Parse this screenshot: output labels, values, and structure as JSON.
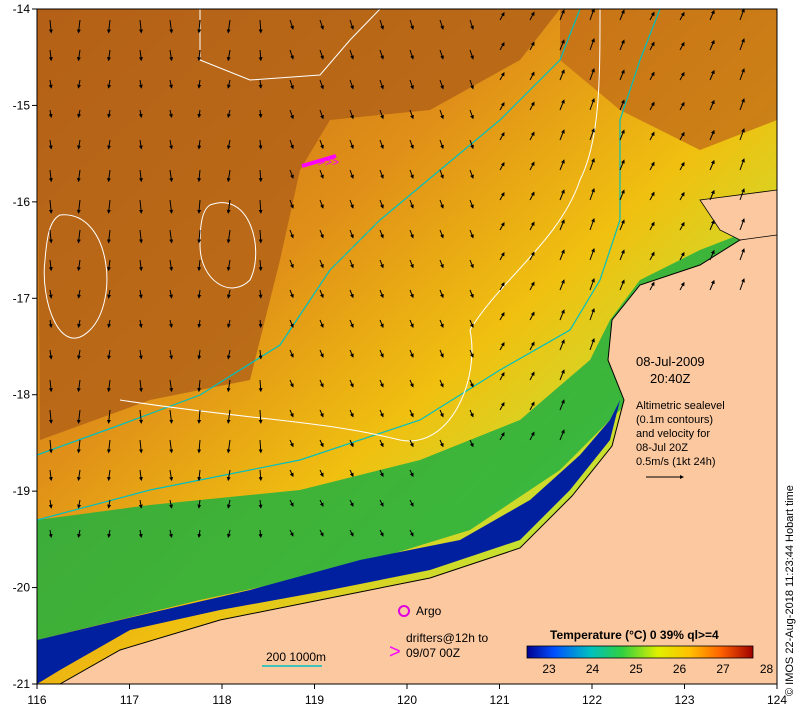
{
  "map": {
    "lon_ticks": [
      "116",
      "117",
      "118",
      "119",
      "120",
      "121",
      "122",
      "123",
      "124"
    ],
    "lat_ticks": [
      "-14",
      "-15",
      "-16",
      "-17",
      "-18",
      "-19",
      "-20",
      "-21"
    ],
    "lon_range": [
      116,
      124
    ],
    "lat_range": [
      -21,
      -14
    ]
  },
  "annotation": {
    "date": "08-Jul-2009",
    "time": "20:40Z",
    "sealevel_lines": [
      "Altimetric sealevel",
      "(0.1m contours)",
      "and velocity for",
      "08-Jul 20Z",
      "0.5m/s (1kt 24h)"
    ]
  },
  "legend": {
    "argo_label": "Argo",
    "drifters_line1": "drifters@12h to",
    "drifters_line2": "09/07 00Z",
    "bathy_label": "200  1000m",
    "temp_title": "Temperature (°C) 0 39% ql>=4",
    "temp_ticks": [
      "23",
      "24",
      "25",
      "26",
      "27",
      "28"
    ]
  },
  "credit": "© IMOS 22-Aug-2018 11:23:44 Hobart time",
  "colors": {
    "land": "#fcc8a0",
    "argo": "#e000e0",
    "drifter": "#ff00ff",
    "bathy": "#00c0c0",
    "contour": "#ffffff"
  }
}
